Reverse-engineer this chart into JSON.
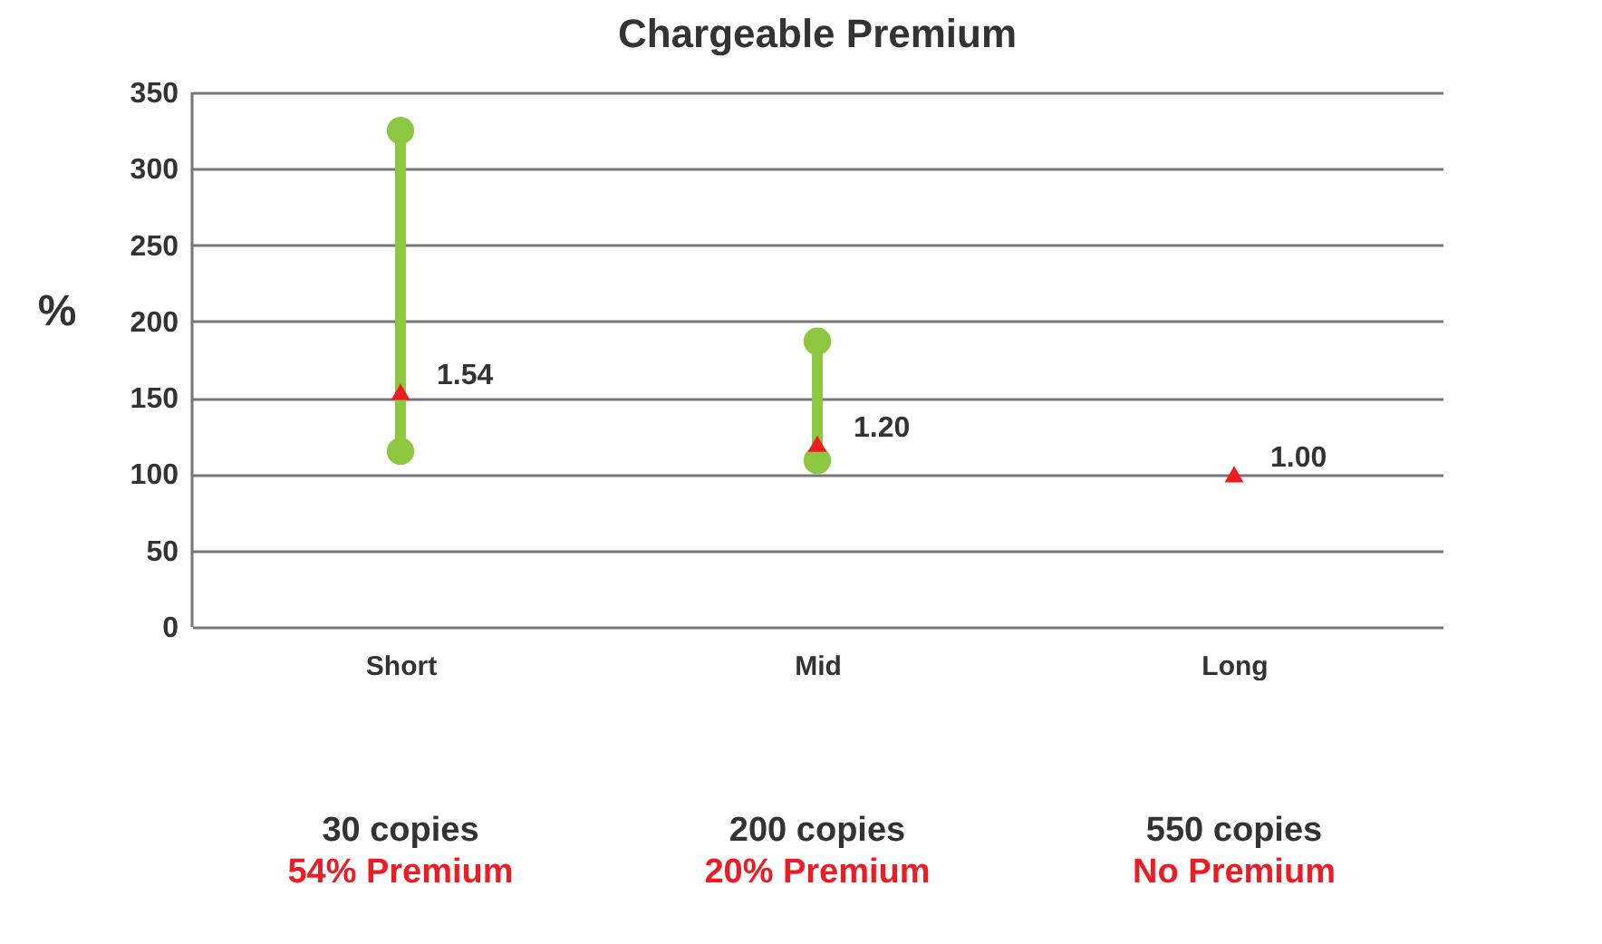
{
  "chart_data": {
    "type": "line",
    "title": "Chargeable Premium",
    "ylabel": "%",
    "categories": [
      "Short",
      "Mid",
      "Long"
    ],
    "series": [
      {
        "color": "#8dc63f",
        "x": [
          "Short",
          "Short"
        ],
        "values": [
          115,
          325
        ],
        "marker": "circle"
      },
      {
        "color": "#8dc63f",
        "x": [
          "Mid",
          "Mid"
        ],
        "values": [
          109,
          187
        ],
        "marker": "circle"
      },
      {
        "type": "scatter",
        "color": "#ed1c24",
        "values": [
          154,
          120,
          100
        ],
        "marker": "triangle"
      }
    ],
    "ylim": [
      0,
      350
    ],
    "yticks": [
      0,
      50,
      100,
      150,
      200,
      250,
      300,
      350
    ],
    "grid": "y",
    "annotations": [
      {
        "text": "1.54",
        "x": "Short",
        "y": 154
      },
      {
        "text": "1.20",
        "x": "Mid",
        "y": 120
      },
      {
        "text": "1.00",
        "x": "Long",
        "y": 100
      },
      "30 copies",
      "54% Premium",
      "200 copies",
      "20% Premium",
      "550 copies",
      "No Premium"
    ]
  }
}
